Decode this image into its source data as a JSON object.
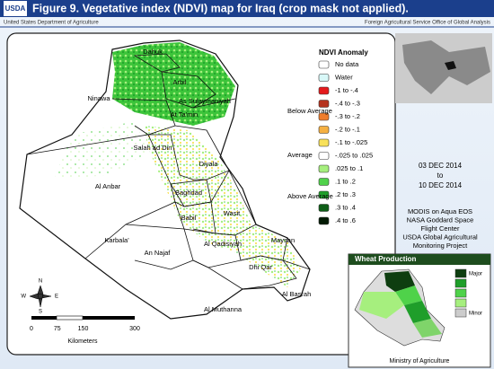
{
  "header": {
    "title": "Figure 9.  Vegetative index (NDVI) map for Iraq (crop mask not applied).",
    "logo": "USDA",
    "agency": "United States Department of Agriculture",
    "office": "Foreign Agricultural Service  Office of Global Analysis"
  },
  "provinces": [
    {
      "label": "Dahuk"
    },
    {
      "label": "Arbil"
    },
    {
      "label": "Ninawa"
    },
    {
      "label": "As Sulaymaniyah"
    },
    {
      "label": "At Ta'min"
    },
    {
      "label": "Salah ad Din"
    },
    {
      "label": "Diyala"
    },
    {
      "label": "Al Anbar"
    },
    {
      "label": "Baghdad"
    },
    {
      "label": "Babil"
    },
    {
      "label": "Wasit"
    },
    {
      "label": "Karbala'"
    },
    {
      "label": "Al Qadisiyah"
    },
    {
      "label": "Maysan"
    },
    {
      "label": "An Najaf"
    },
    {
      "label": "Dhi Qar"
    },
    {
      "label": "Al Basrah"
    },
    {
      "label": "Al Muthanna"
    }
  ],
  "legend": {
    "title": "NDVI Anomaly",
    "groups": [
      "Below Average",
      "Average",
      "Above Average"
    ],
    "items": [
      {
        "label": "No data",
        "color": "#ffffff"
      },
      {
        "label": "Water",
        "color": "#d8f8f8"
      },
      {
        "label": "-1 to -.4",
        "color": "#e41a1c"
      },
      {
        "label": "-.4 to -.3",
        "color": "#b5321e"
      },
      {
        "label": "-.3 to -.2",
        "color": "#f07d2c"
      },
      {
        "label": "-.2 to -.1",
        "color": "#f5b042"
      },
      {
        "label": "-.1 to -.025",
        "color": "#f8e15a"
      },
      {
        "label": "-.025 to .025",
        "color": "#ffffff"
      },
      {
        "label": ".025 to .1",
        "color": "#a6ef7e"
      },
      {
        "label": ".1 to .2",
        "color": "#4fd24a"
      },
      {
        "label": ".2 to .3",
        "color": "#1f9e2a"
      },
      {
        "label": ".3 to .4",
        "color": "#0e5e17"
      },
      {
        "label": ".4 to .6",
        "color": "#021a04"
      }
    ]
  },
  "dates": [
    "03 DEC 2014",
    "to",
    "10 DEC 2014"
  ],
  "source": [
    "MODIS on Aqua EOS",
    "NASA Goddard Space",
    "Flight Center",
    "USDA Global Agricultural",
    "Monitoring Project"
  ],
  "scale_bar": {
    "ticks": [
      0,
      75,
      150,
      300
    ],
    "unit": "Kilometers"
  },
  "compass": {
    "n": "N",
    "s": "S",
    "e": "E",
    "w": "W"
  },
  "inset": {
    "title": "Wheat Production",
    "major": "Major",
    "minor": "Minor",
    "source": "Ministry of Agriculture"
  }
}
